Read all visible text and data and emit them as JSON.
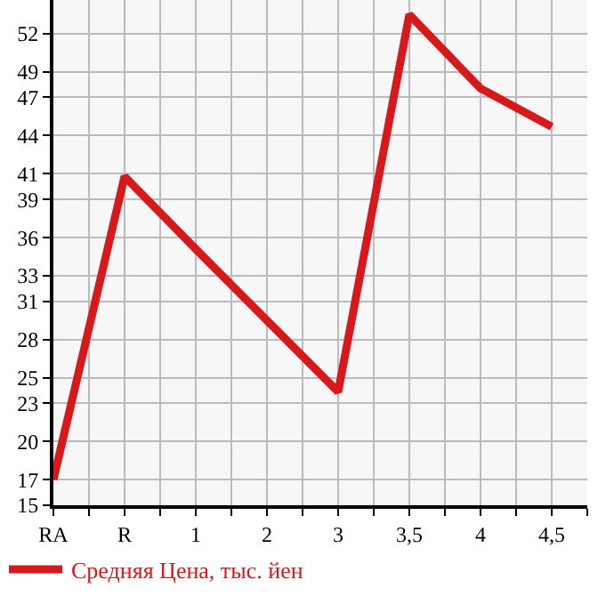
{
  "chart_data": {
    "type": "line",
    "categories": [
      "RA",
      "R",
      "1",
      "2",
      "3",
      "3,5",
      "4",
      "4,5"
    ],
    "series": [
      {
        "name": "Средняя Цена, тыс. йен",
        "color": "#d7191c",
        "values": [
          17.0,
          40.8,
          35.1,
          29.5,
          23.9,
          53.5,
          47.7,
          44.7
        ]
      }
    ],
    "ylim": [
      15,
      54.64
    ],
    "yticks": [
      15,
      17,
      20,
      23,
      25,
      28,
      31,
      33,
      36,
      39,
      41,
      44,
      47,
      49,
      52
    ],
    "grid": true,
    "legend": "bottom",
    "marker": "none",
    "line_style": "solid"
  }
}
